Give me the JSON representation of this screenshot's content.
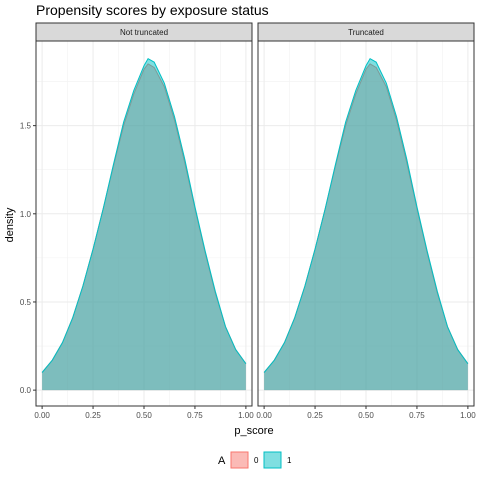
{
  "chart_data": {
    "type": "area",
    "title": "Propensity scores by exposure status",
    "xlabel": "p_score",
    "ylabel": "density",
    "xlim": [
      -0.03,
      1.03
    ],
    "ylim": [
      -0.09,
      1.98
    ],
    "xticks": [
      0.0,
      0.25,
      0.5,
      0.75,
      1.0
    ],
    "xtick_labels": [
      "0.00",
      "0.25",
      "0.50",
      "0.75",
      "1.00"
    ],
    "yticks": [
      0.0,
      0.5,
      1.0,
      1.5
    ],
    "ytick_labels": [
      "0.0",
      "0.5",
      "1.0",
      "1.5"
    ],
    "grid": true,
    "legend": {
      "position": "bottom",
      "title": "A",
      "entries": [
        {
          "label": "0",
          "fill": "#F8766D",
          "stroke": "#F8766D"
        },
        {
          "label": "1",
          "fill": "#00BFC4",
          "stroke": "#00BFC4"
        }
      ]
    },
    "x": [
      0.0,
      0.05,
      0.1,
      0.15,
      0.2,
      0.25,
      0.3,
      0.35,
      0.4,
      0.45,
      0.5,
      0.52,
      0.55,
      0.6,
      0.65,
      0.7,
      0.75,
      0.8,
      0.85,
      0.9,
      0.95,
      1.0
    ],
    "panels": [
      {
        "label": "Not truncated",
        "series": [
          {
            "name": "0",
            "values": [
              0.1,
              0.17,
              0.27,
              0.41,
              0.59,
              0.8,
              1.03,
              1.27,
              1.5,
              1.68,
              1.82,
              1.85,
              1.83,
              1.72,
              1.53,
              1.29,
              1.03,
              0.78,
              0.55,
              0.36,
              0.23,
              0.15
            ]
          },
          {
            "name": "1",
            "values": [
              0.1,
              0.17,
              0.27,
              0.41,
              0.59,
              0.8,
              1.03,
              1.28,
              1.52,
              1.7,
              1.84,
              1.88,
              1.86,
              1.74,
              1.55,
              1.31,
              1.04,
              0.79,
              0.56,
              0.36,
              0.23,
              0.15
            ]
          }
        ]
      },
      {
        "label": "Truncated",
        "series": [
          {
            "name": "0",
            "values": [
              0.1,
              0.17,
              0.27,
              0.41,
              0.59,
              0.8,
              1.03,
              1.27,
              1.5,
              1.68,
              1.82,
              1.85,
              1.83,
              1.72,
              1.53,
              1.29,
              1.03,
              0.78,
              0.55,
              0.36,
              0.23,
              0.15
            ]
          },
          {
            "name": "1",
            "values": [
              0.1,
              0.17,
              0.27,
              0.41,
              0.59,
              0.8,
              1.03,
              1.28,
              1.52,
              1.7,
              1.84,
              1.88,
              1.86,
              1.74,
              1.55,
              1.31,
              1.04,
              0.79,
              0.56,
              0.36,
              0.23,
              0.15
            ]
          }
        ]
      }
    ]
  }
}
